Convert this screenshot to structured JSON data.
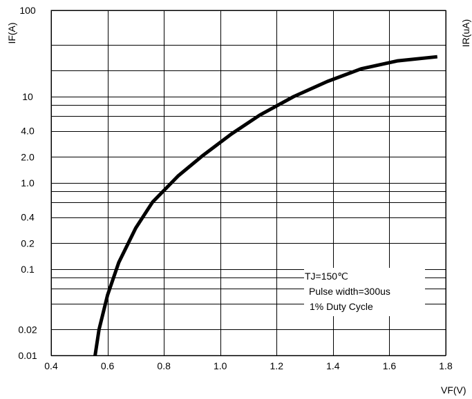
{
  "chart_data": {
    "type": "line",
    "xlabel": "VF(V)",
    "ylabel": "IF(A)",
    "right_axis_label": "IR(uA)",
    "xlim": [
      0.4,
      1.8
    ],
    "ylim": [
      0.01,
      100
    ],
    "y_scale": "log",
    "grid": true,
    "x_ticks": [
      {
        "value": 0.4,
        "label": "0.4"
      },
      {
        "value": 0.6,
        "label": "0.6"
      },
      {
        "value": 0.8,
        "label": "0.8"
      },
      {
        "value": 1.0,
        "label": "1.0"
      },
      {
        "value": 1.2,
        "label": "1.2"
      },
      {
        "value": 1.4,
        "label": "1.4"
      },
      {
        "value": 1.6,
        "label": "1.6"
      },
      {
        "value": 1.8,
        "label": "1.8"
      }
    ],
    "y_ticks": [
      {
        "value": 100,
        "label": "100"
      },
      {
        "value": 10,
        "label": "10"
      },
      {
        "value": 4,
        "label": "4.0"
      },
      {
        "value": 2,
        "label": "2.0"
      },
      {
        "value": 1,
        "label": "1.0"
      },
      {
        "value": 0.4,
        "label": "0.4"
      },
      {
        "value": 0.2,
        "label": "0.2"
      },
      {
        "value": 0.1,
        "label": "0.1"
      },
      {
        "value": 0.02,
        "label": "0.02"
      },
      {
        "value": 0.01,
        "label": "0.01"
      }
    ],
    "minor_gridlines": [
      40,
      20,
      8,
      6,
      4,
      2,
      0.8,
      0.6,
      0.4,
      0.2,
      0.08,
      0.06,
      0.04,
      0.02
    ],
    "legend_lines": [
      "TJ=150℃",
      "Pulse width=300us",
      "1% Duty Cycle"
    ],
    "legend_position": "bottom-right",
    "series": [
      {
        "color": "#000000",
        "x": [
          0.556,
          0.57,
          0.6,
          0.64,
          0.7,
          0.76,
          0.85,
          0.94,
          1.04,
          1.14,
          1.26,
          1.38,
          1.5,
          1.63,
          1.77
        ],
        "y": [
          0.01,
          0.02,
          0.05,
          0.12,
          0.3,
          0.6,
          1.2,
          2.1,
          3.7,
          6.1,
          10,
          15,
          21,
          26,
          29
        ]
      }
    ]
  }
}
